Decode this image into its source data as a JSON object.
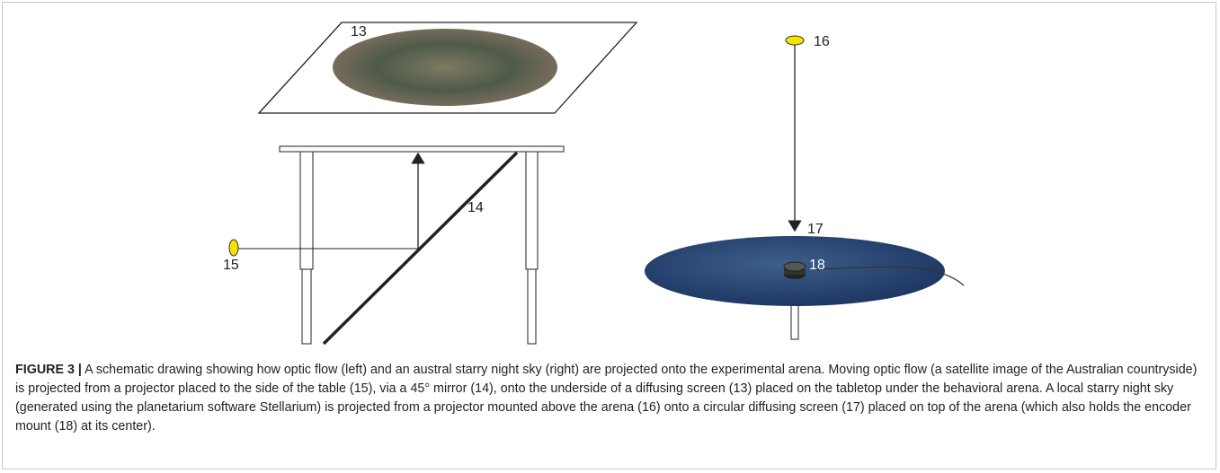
{
  "figure": {
    "labels": [
      "13",
      "14",
      "15",
      "16",
      "17",
      "18"
    ]
  },
  "caption": {
    "label": "FIGURE 3 |",
    "text": "A schematic drawing showing how optic flow (left) and an austral starry night sky (right) are projected onto the experimental arena. Moving optic flow (a satellite image of the Australian countryside) is projected from a projector placed to the side of the table (15), via a 45° mirror (14), onto the underside of a diffusing screen (13) placed on the tabletop under the behavioral arena. A local starry night sky (generated using the planetarium software Stellarium) is projected from a projector mounted above the arena (16) onto a circular diffusing screen (17) placed on top of the arena (which also holds the encoder mount (18) at its center)."
  }
}
